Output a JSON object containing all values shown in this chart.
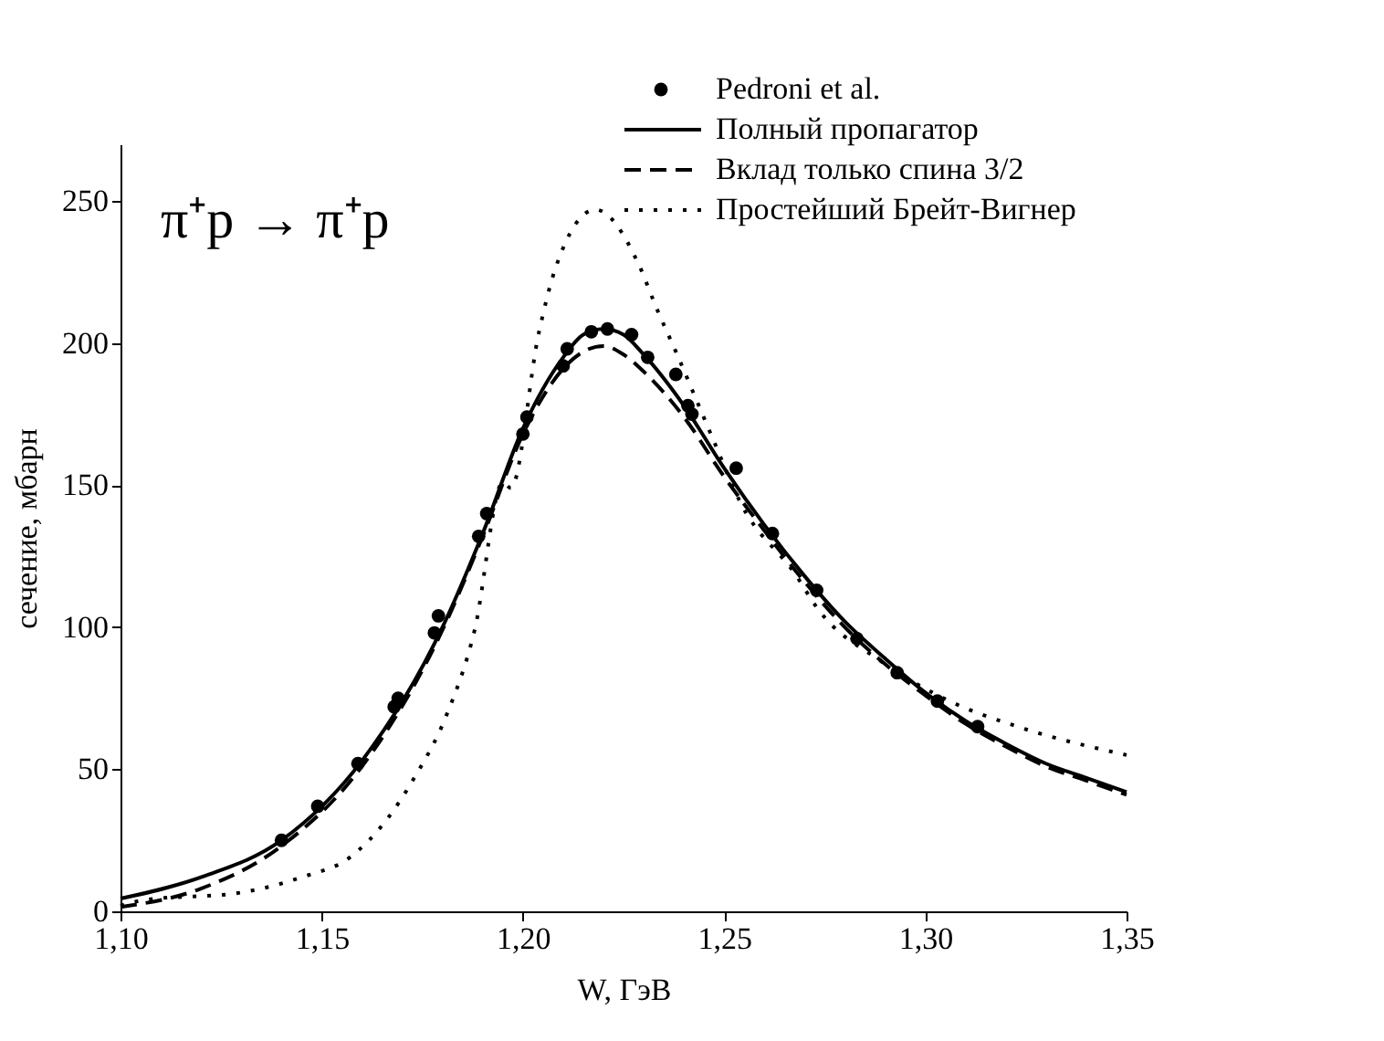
{
  "chart_data": {
    "type": "line",
    "xlabel": "W, ГэВ",
    "ylabel": "сечение, мбарн",
    "annotations": [
      "π⁺p → π⁺p"
    ],
    "xlim": [
      1.1,
      1.35
    ],
    "ylim": [
      0,
      270
    ],
    "xticks": [
      {
        "value": 1.1,
        "label": "1,10"
      },
      {
        "value": 1.15,
        "label": "1,15"
      },
      {
        "value": 1.2,
        "label": "1,20"
      },
      {
        "value": 1.25,
        "label": "1,25"
      },
      {
        "value": 1.3,
        "label": "1,30"
      },
      {
        "value": 1.35,
        "label": "1,35"
      }
    ],
    "yticks": [
      0,
      50,
      100,
      150,
      200,
      250
    ],
    "grid": false,
    "legend": "top right",
    "series": [
      {
        "name": "Pedroni et al.",
        "type": "scatter",
        "marker": "circle",
        "color": "#000000",
        "x": [
          1.14,
          1.149,
          1.159,
          1.168,
          1.169,
          1.178,
          1.179,
          1.189,
          1.191,
          1.2,
          1.201,
          1.21,
          1.211,
          1.217,
          1.221,
          1.227,
          1.231,
          1.238,
          1.241,
          1.242,
          1.253,
          1.262,
          1.273,
          1.283,
          1.293,
          1.303,
          1.313
        ],
        "values": [
          25,
          37,
          52,
          72,
          75,
          98,
          104,
          132,
          140,
          168,
          174,
          192,
          198,
          204,
          205,
          203,
          195,
          189,
          178,
          175,
          156,
          133,
          113,
          96,
          84,
          74,
          65
        ]
      },
      {
        "name": "Полный пропагатор",
        "line_style": "solid",
        "color": "#000000",
        "x": [
          1.1,
          1.12,
          1.14,
          1.16,
          1.18,
          1.19,
          1.2,
          1.21,
          1.215,
          1.22,
          1.225,
          1.23,
          1.24,
          1.25,
          1.26,
          1.27,
          1.28,
          1.29,
          1.3,
          1.31,
          1.32,
          1.33,
          1.34,
          1.35
        ],
        "values": [
          4.5,
          12,
          25,
          53,
          100,
          133,
          170,
          195,
          203,
          205,
          203,
          196,
          178,
          156,
          136,
          118,
          102,
          89,
          77,
          67,
          59,
          52,
          47,
          42
        ]
      },
      {
        "name": "Вклад только спина 3/2",
        "line_style": "dashed",
        "color": "#000000",
        "x": [
          1.1,
          1.12,
          1.14,
          1.16,
          1.18,
          1.19,
          1.2,
          1.21,
          1.215,
          1.22,
          1.225,
          1.23,
          1.24,
          1.25,
          1.26,
          1.27,
          1.28,
          1.29,
          1.3,
          1.31,
          1.32,
          1.33,
          1.34,
          1.35
        ],
        "values": [
          1.5,
          8,
          23,
          51,
          99,
          132,
          168,
          191,
          197,
          199,
          196,
          190,
          174,
          153,
          134,
          116,
          100,
          87,
          76,
          66,
          58,
          51,
          46,
          41
        ]
      },
      {
        "name": "Простейший Брейт-Вигнер",
        "line_style": "dotted",
        "color": "#000000",
        "x": [
          1.1,
          1.106,
          1.129,
          1.145,
          1.157,
          1.166,
          1.173,
          1.181,
          1.188,
          1.195,
          1.197,
          1.204,
          1.208,
          1.218,
          1.229,
          1.233,
          1.238,
          1.247,
          1.254,
          1.268,
          1.273,
          1.289,
          1.306,
          1.323,
          1.35
        ],
        "values": [
          2,
          4,
          6.4,
          12,
          19,
          32,
          47,
          69,
          99,
          151,
          149,
          204,
          226,
          247,
          227,
          213,
          197,
          167,
          144,
          118,
          107,
          88,
          74,
          65,
          55
        ]
      }
    ]
  }
}
